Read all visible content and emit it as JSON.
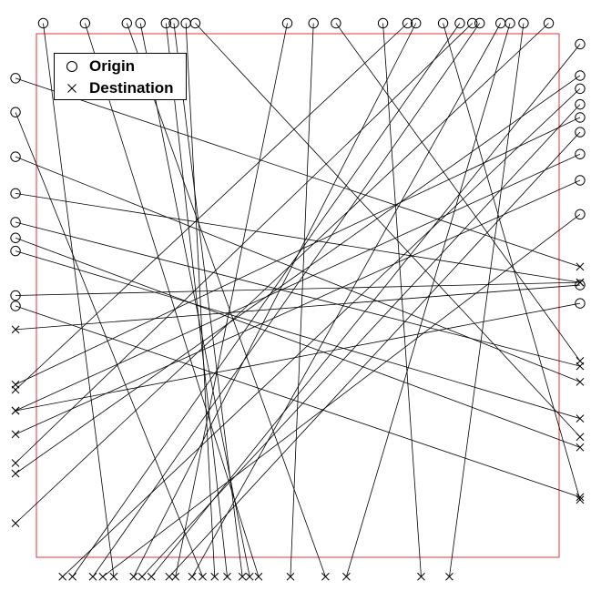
{
  "legend": {
    "origin_label": "Origin",
    "destination_label": "Destination",
    "placement": "top-left"
  },
  "colors": {
    "frame": "#e8333a",
    "lines": "#000000",
    "markers": "#000000"
  },
  "chart_data": {
    "type": "scatter",
    "title": "",
    "xlabel": "",
    "ylabel": "",
    "xlim": [
      0,
      1
    ],
    "ylim": [
      0,
      1
    ],
    "grid": false,
    "description_of_marks": "Each flow connects an origin (circle) on the figure border to a destination (cross) on the border.",
    "flows": [
      {
        "origin": [
          0.013,
          1.02
        ],
        "destination": [
          0.148,
          -0.037
        ]
      },
      {
        "origin": [
          0.093,
          1.02
        ],
        "destination": [
          0.425,
          -0.037
        ]
      },
      {
        "origin": [
          0.173,
          1.02
        ],
        "destination": [
          0.553,
          -0.037
        ]
      },
      {
        "origin": [
          0.199,
          1.02
        ],
        "destination": [
          0.408,
          -0.037
        ]
      },
      {
        "origin": [
          0.248,
          1.02
        ],
        "destination": [
          0.365,
          -0.037
        ]
      },
      {
        "origin": [
          0.263,
          1.02
        ],
        "destination": [
          0.394,
          -0.037
        ]
      },
      {
        "origin": [
          0.286,
          1.02
        ],
        "destination": [
          0.341,
          -0.037
        ]
      },
      {
        "origin": [
          0.304,
          1.02
        ],
        "destination": [
          1.04,
          0.23
        ]
      },
      {
        "origin": [
          0.48,
          1.02
        ],
        "destination": [
          0.266,
          -0.037
        ]
      },
      {
        "origin": [
          0.53,
          1.02
        ],
        "destination": [
          0.486,
          -0.037
        ]
      },
      {
        "origin": [
          0.573,
          1.02
        ],
        "destination": [
          1.04,
          0.375
        ]
      },
      {
        "origin": [
          0.663,
          1.02
        ],
        "destination": [
          0.736,
          -0.037
        ]
      },
      {
        "origin": [
          0.71,
          1.02
        ],
        "destination": [
          -0.04,
          0.32
        ]
      },
      {
        "origin": [
          0.726,
          1.02
        ],
        "destination": [
          0.186,
          -0.037
        ]
      },
      {
        "origin": [
          0.778,
          1.02
        ],
        "destination": [
          1.04,
          0.11
        ]
      },
      {
        "origin": [
          0.81,
          1.02
        ],
        "destination": [
          0.069,
          -0.037
        ]
      },
      {
        "origin": [
          0.834,
          1.02
        ],
        "destination": [
          -0.04,
          0.18
        ]
      },
      {
        "origin": [
          0.848,
          1.02
        ],
        "destination": [
          0.108,
          -0.037
        ]
      },
      {
        "origin": [
          0.888,
          1.02
        ],
        "destination": [
          0.298,
          -0.037
        ]
      },
      {
        "origin": [
          0.906,
          1.02
        ],
        "destination": [
          0.593,
          -0.037
        ]
      },
      {
        "origin": [
          0.932,
          1.02
        ],
        "destination": [
          0.79,
          -0.037
        ]
      },
      {
        "origin": [
          0.98,
          1.02
        ],
        "destination": [
          -0.04,
          0.065
        ]
      },
      {
        "origin": [
          1.04,
          0.98
        ],
        "destination": [
          0.22,
          -0.037
        ]
      },
      {
        "origin": [
          -0.04,
          0.915
        ],
        "destination": [
          1.04,
          0.555
        ]
      },
      {
        "origin": [
          -0.04,
          0.85
        ],
        "destination": [
          0.318,
          -0.037
        ]
      },
      {
        "origin": [
          -0.04,
          0.765
        ],
        "destination": [
          1.04,
          0.335
        ]
      },
      {
        "origin": [
          -0.04,
          0.695
        ],
        "destination": [
          1.04,
          0.525
        ]
      },
      {
        "origin": [
          -0.04,
          0.64
        ],
        "destination": [
          1.04,
          0.365
        ]
      },
      {
        "origin": [
          -0.04,
          0.61
        ],
        "destination": [
          1.04,
          0.21
        ]
      },
      {
        "origin": [
          -0.04,
          0.585
        ],
        "destination": [
          1.04,
          0.265
        ]
      },
      {
        "origin": [
          -0.04,
          0.5
        ],
        "destination": [
          1.04,
          0.525
        ]
      },
      {
        "origin": [
          -0.04,
          0.48
        ],
        "destination": [
          1.04,
          0.115
        ]
      },
      {
        "origin": [
          1.04,
          0.92
        ],
        "destination": [
          -0.04,
          0.16
        ]
      },
      {
        "origin": [
          1.04,
          0.895
        ],
        "destination": [
          0.05,
          -0.037
        ]
      },
      {
        "origin": [
          1.04,
          0.865
        ],
        "destination": [
          0.202,
          -0.037
        ]
      },
      {
        "origin": [
          1.04,
          0.84
        ],
        "destination": [
          -0.04,
          0.33
        ]
      },
      {
        "origin": [
          1.04,
          0.812
        ],
        "destination": [
          0.254,
          -0.037
        ]
      },
      {
        "origin": [
          1.04,
          0.77
        ],
        "destination": [
          -0.04,
          0.28
        ]
      },
      {
        "origin": [
          1.04,
          0.72
        ],
        "destination": [
          -0.04,
          0.235
        ]
      },
      {
        "origin": [
          1.04,
          0.655
        ],
        "destination": [
          0.127,
          -0.037
        ]
      },
      {
        "origin": [
          1.04,
          0.52
        ],
        "destination": [
          -0.04,
          0.435
        ]
      },
      {
        "origin": [
          1.04,
          0.485
        ],
        "destination": [
          -0.04,
          0.28
        ]
      }
    ]
  }
}
